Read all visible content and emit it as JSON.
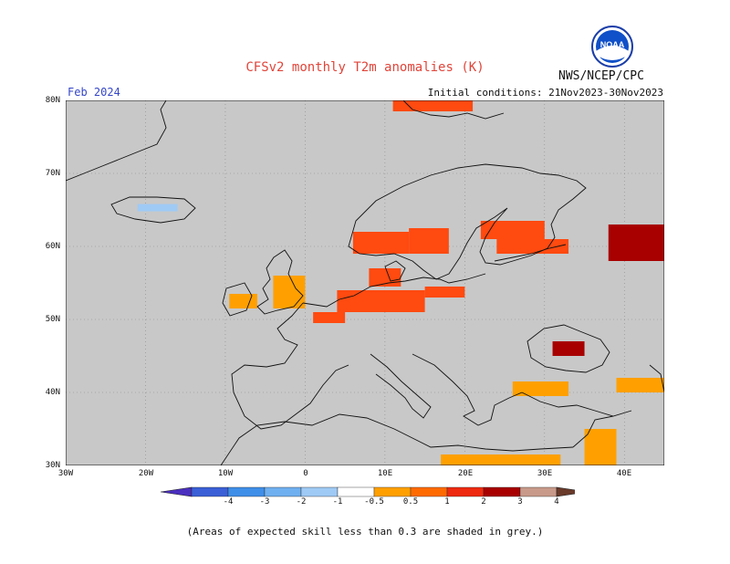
{
  "header": {
    "title": "CFSv2 monthly T2m anomalies (K)",
    "agency": "NWS/NCEP/CPC",
    "period": "Feb 2024",
    "initial_conditions": "Initial conditions: 21Nov2023-30Nov2023"
  },
  "logo": {
    "text": "NOAA",
    "icon": "noaa-logo-icon"
  },
  "map": {
    "region": "Europe",
    "lon_range": [
      -30,
      45
    ],
    "lat_range": [
      30,
      80
    ],
    "lat_labels": [
      "80N",
      "70N",
      "60N",
      "50N",
      "40N",
      "30N"
    ],
    "lon_labels": [
      "30W",
      "20W",
      "10W",
      "0",
      "10E",
      "20E",
      "30E",
      "40E"
    ],
    "background_color": "#c8c8c8",
    "anomaly_regions": [
      {
        "name": "svalbard-south",
        "lon": [
          11,
          21
        ],
        "lat": [
          78.5,
          80
        ],
        "level": "1-2"
      },
      {
        "name": "iceland-cool",
        "lon": [
          -21,
          -16
        ],
        "lat": [
          64.8,
          65.8
        ],
        "level": "-0.5--1"
      },
      {
        "name": "norway-coast",
        "lon": [
          6,
          13
        ],
        "lat": [
          59,
          62
        ],
        "level": "1-2"
      },
      {
        "name": "sweden-central",
        "lon": [
          13,
          18
        ],
        "lat": [
          59,
          62.5
        ],
        "level": "1-2"
      },
      {
        "name": "finland-west",
        "lon": [
          22,
          30
        ],
        "lat": [
          61,
          63.5
        ],
        "level": "1-2"
      },
      {
        "name": "finland-south",
        "lon": [
          24,
          33
        ],
        "lat": [
          59,
          61
        ],
        "level": "1-2"
      },
      {
        "name": "russia-northwest",
        "lon": [
          38,
          46
        ],
        "lat": [
          58,
          63
        ],
        "level": "2-3"
      },
      {
        "name": "uk-east",
        "lon": [
          -4,
          0
        ],
        "lat": [
          51.5,
          56
        ],
        "level": "0.5-1"
      },
      {
        "name": "ireland",
        "lon": [
          -9.5,
          -6
        ],
        "lat": [
          51.5,
          53.5
        ],
        "level": "0.5-1"
      },
      {
        "name": "netherlands-germany",
        "lon": [
          4,
          15
        ],
        "lat": [
          51,
          54
        ],
        "level": "1-2"
      },
      {
        "name": "denmark",
        "lon": [
          8,
          12
        ],
        "lat": [
          54.5,
          57
        ],
        "level": "1-2"
      },
      {
        "name": "poland-north",
        "lon": [
          15,
          20
        ],
        "lat": [
          53,
          54.5
        ],
        "level": "1-2"
      },
      {
        "name": "belgium-france",
        "lon": [
          1,
          5
        ],
        "lat": [
          49.5,
          51
        ],
        "level": "1-2"
      },
      {
        "name": "black-sea-east",
        "lon": [
          31,
          35
        ],
        "lat": [
          45,
          47
        ],
        "level": "2-3"
      },
      {
        "name": "turkey-north",
        "lon": [
          26,
          33
        ],
        "lat": [
          39.5,
          41.5
        ],
        "level": "0.5-1"
      },
      {
        "name": "turkey-east",
        "lon": [
          39,
          45
        ],
        "lat": [
          40,
          42
        ],
        "level": "0.5-1"
      },
      {
        "name": "north-africa-coast",
        "lon": [
          17,
          32
        ],
        "lat": [
          30,
          31.5
        ],
        "level": "0.5-1"
      },
      {
        "name": "levant",
        "lon": [
          35,
          39
        ],
        "lat": [
          30,
          35
        ],
        "level": "0.5-1"
      }
    ]
  },
  "colorbar": {
    "labels": [
      "-4",
      "-3",
      "-2",
      "-1",
      "-0.5",
      "0.5",
      "1",
      "2",
      "3",
      "4"
    ],
    "colors": [
      "#4a2fbf",
      "#3a5fd6",
      "#3f8ee8",
      "#6fb0f0",
      "#9fcaf5",
      "#ffffff",
      "#ffa000",
      "#ff6a00",
      "#ee2a10",
      "#a80000",
      "#c89a8a",
      "#6a3a2a"
    ]
  },
  "footnote": "(Areas of expected skill less than 0.3 are shaded in grey.)"
}
